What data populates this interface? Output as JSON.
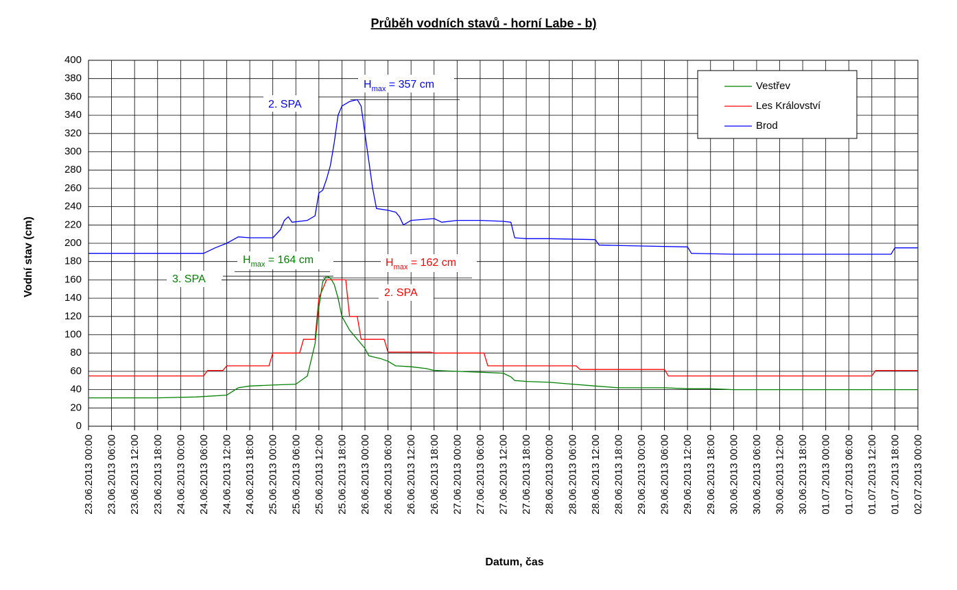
{
  "chart_data": {
    "type": "line",
    "title": "Průběh vodních stavů - horní Labe - b)",
    "xlabel": "Datum, čas",
    "ylabel": "Vodní stav (cm)",
    "ylim": [
      0,
      400
    ],
    "yticks": [
      0,
      20,
      40,
      60,
      80,
      100,
      120,
      140,
      160,
      180,
      200,
      220,
      240,
      260,
      280,
      300,
      320,
      340,
      360,
      380,
      400
    ],
    "xlim_hours": [
      0,
      216
    ],
    "xticks": [
      "23.06.2013 00:00",
      "23.06.2013 06:00",
      "23.06.2013 12:00",
      "23.06.2013 18:00",
      "24.06.2013 00:00",
      "24.06.2013 06:00",
      "24.06.2013 12:00",
      "24.06.2013 18:00",
      "25.06.2013 00:00",
      "25.06.2013 06:00",
      "25.06.2013 12:00",
      "25.06.2013 18:00",
      "26.06.2013 00:00",
      "26.06.2013 06:00",
      "26.06.2013 12:00",
      "26.06.2013 18:00",
      "27.06.2013 00:00",
      "27.06.2013 06:00",
      "27.06.2013 12:00",
      "27.06.2013 18:00",
      "28.06.2013 00:00",
      "28.06.2013 06:00",
      "28.06.2013 12:00",
      "28.06.2013 18:00",
      "29.06.2013 00:00",
      "29.06.2013 06:00",
      "29.06.2013 12:00",
      "29.06.2013 18:00",
      "30.06.2013 00:00",
      "30.06.2013 06:00",
      "30.06.2013 12:00",
      "30.06.2013 18:00",
      "01.07.2013 00:00",
      "01.07.2013 06:00",
      "01.07.2013 12:00",
      "01.07.2013 18:00",
      "02.07.2013 00:00"
    ],
    "grid": true,
    "legend_position": "top-right",
    "series": [
      {
        "name": "Vestřev",
        "color": "#008000",
        "points": [
          [
            0,
            31
          ],
          [
            18,
            31
          ],
          [
            28,
            32
          ],
          [
            36,
            34
          ],
          [
            39,
            42
          ],
          [
            42,
            44
          ],
          [
            48,
            45
          ],
          [
            54,
            46
          ],
          [
            57,
            55
          ],
          [
            59,
            90
          ],
          [
            60,
            130
          ],
          [
            61,
            158
          ],
          [
            62,
            164
          ],
          [
            63,
            162
          ],
          [
            64,
            155
          ],
          [
            65,
            140
          ],
          [
            66,
            120
          ],
          [
            68,
            105
          ],
          [
            70,
            95
          ],
          [
            72,
            85
          ],
          [
            73,
            77
          ],
          [
            76,
            74
          ],
          [
            78,
            71
          ],
          [
            80,
            66
          ],
          [
            84,
            65
          ],
          [
            88,
            63
          ],
          [
            90,
            61
          ],
          [
            96,
            60
          ],
          [
            102,
            59
          ],
          [
            108,
            58
          ],
          [
            110,
            54
          ],
          [
            111,
            50
          ],
          [
            114,
            49
          ],
          [
            120,
            48
          ],
          [
            126,
            46
          ],
          [
            132,
            44
          ],
          [
            138,
            42
          ],
          [
            144,
            42
          ],
          [
            150,
            42
          ],
          [
            156,
            41
          ],
          [
            162,
            41
          ],
          [
            168,
            40
          ],
          [
            174,
            40
          ],
          [
            180,
            40
          ],
          [
            186,
            40
          ],
          [
            192,
            40
          ],
          [
            198,
            40
          ],
          [
            204,
            40
          ],
          [
            210,
            40
          ],
          [
            216,
            40
          ]
        ]
      },
      {
        "name": "Les Království",
        "color": "#ff0000",
        "points": [
          [
            0,
            55
          ],
          [
            30,
            55
          ],
          [
            31,
            61
          ],
          [
            35,
            61
          ],
          [
            36,
            66
          ],
          [
            47,
            66
          ],
          [
            48,
            80
          ],
          [
            55,
            80
          ],
          [
            56,
            95
          ],
          [
            59,
            95
          ],
          [
            60,
            140
          ],
          [
            62,
            160
          ],
          [
            66,
            160
          ],
          [
            67,
            160
          ],
          [
            68,
            120
          ],
          [
            70,
            120
          ],
          [
            71,
            95
          ],
          [
            77,
            95
          ],
          [
            78,
            81
          ],
          [
            89,
            81
          ],
          [
            90,
            80
          ],
          [
            103,
            80
          ],
          [
            104,
            66
          ],
          [
            127,
            66
          ],
          [
            128,
            62
          ],
          [
            150,
            62
          ],
          [
            151,
            55
          ],
          [
            204,
            55
          ],
          [
            205,
            61
          ],
          [
            216,
            61
          ]
        ]
      },
      {
        "name": "Brod",
        "color": "#0000ff",
        "points": [
          [
            0,
            189
          ],
          [
            30,
            189
          ],
          [
            33,
            195
          ],
          [
            36,
            200
          ],
          [
            39,
            207
          ],
          [
            42,
            206
          ],
          [
            48,
            206
          ],
          [
            50,
            215
          ],
          [
            51,
            225
          ],
          [
            52,
            229
          ],
          [
            53,
            223
          ],
          [
            57,
            225
          ],
          [
            59,
            230
          ],
          [
            60,
            255
          ],
          [
            61,
            258
          ],
          [
            62,
            270
          ],
          [
            63,
            285
          ],
          [
            64,
            310
          ],
          [
            65,
            340
          ],
          [
            66,
            350
          ],
          [
            68,
            355
          ],
          [
            70,
            357
          ],
          [
            71,
            350
          ],
          [
            72,
            320
          ],
          [
            73,
            290
          ],
          [
            74,
            260
          ],
          [
            75,
            238
          ],
          [
            78,
            236
          ],
          [
            80,
            234
          ],
          [
            81,
            229
          ],
          [
            82,
            220
          ],
          [
            84,
            225
          ],
          [
            90,
            227
          ],
          [
            92,
            223
          ],
          [
            96,
            225
          ],
          [
            102,
            225
          ],
          [
            108,
            224
          ],
          [
            110,
            223
          ],
          [
            111,
            206
          ],
          [
            114,
            205
          ],
          [
            120,
            205
          ],
          [
            132,
            204
          ],
          [
            133,
            198
          ],
          [
            144,
            197
          ],
          [
            156,
            196
          ],
          [
            157,
            189
          ],
          [
            168,
            188
          ],
          [
            180,
            188
          ],
          [
            192,
            188
          ],
          [
            204,
            188
          ],
          [
            209,
            188
          ],
          [
            210,
            195
          ],
          [
            216,
            195
          ]
        ]
      }
    ],
    "annotations": [
      {
        "text": "2. SPA",
        "color": "#0000ff"
      },
      {
        "text": "3. SPA",
        "color": "#008000"
      },
      {
        "text": "2. SPA",
        "color": "#ff0000"
      }
    ]
  },
  "hmax": {
    "prefix": "H",
    "sub": "max",
    "brod": " = 357 cm",
    "vestrev": " = 164 cm",
    "les": " = 162 cm"
  }
}
